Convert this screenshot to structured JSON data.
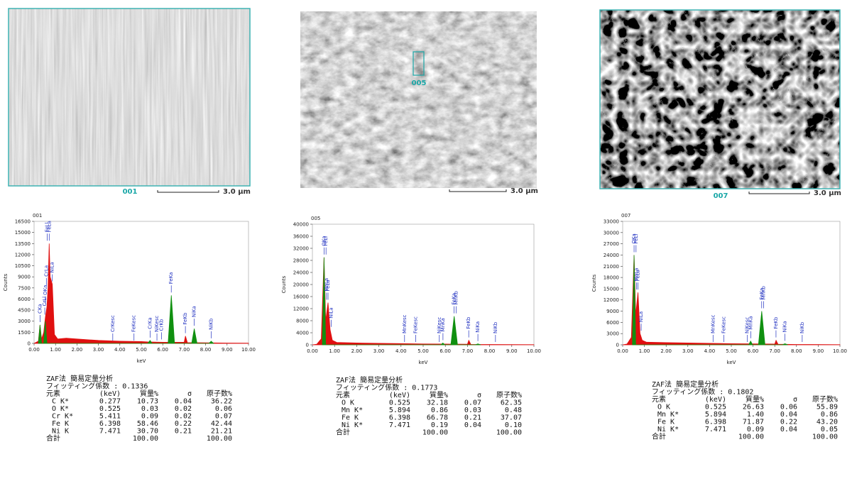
{
  "chart_data": [
    {
      "type": "line",
      "title": "001",
      "ylabel": "Counts",
      "xlabel": "keV",
      "grid": false,
      "xlim": [
        0,
        10
      ],
      "ylim": [
        0,
        16500
      ],
      "xticks": [
        {
          "value": 0,
          "label": "0.00"
        },
        {
          "value": 1,
          "label": "1.00"
        },
        {
          "value": 2,
          "label": "2.00"
        },
        {
          "value": 3,
          "label": "3.00"
        },
        {
          "value": 4,
          "label": "4.00"
        },
        {
          "value": 5,
          "label": "5.00"
        },
        {
          "value": 6,
          "label": "6.00"
        },
        {
          "value": 7,
          "label": "7.00"
        },
        {
          "value": 8,
          "label": "8.00"
        },
        {
          "value": 9,
          "label": "9.00"
        },
        {
          "value": 10,
          "label": "10.00"
        }
      ],
      "yticks": [
        0,
        1500,
        3000,
        4500,
        6000,
        7500,
        9000,
        10500,
        12000,
        13500,
        15000,
        16500
      ],
      "series": [
        {
          "color": "#e01010",
          "x": [
            0,
            0.2,
            0.277,
            0.35,
            0.45,
            0.525,
            0.6,
            0.65,
            0.705,
            0.75,
            0.85,
            0.95,
            1.1,
            1.5,
            2,
            3,
            4,
            5,
            5.3,
            6,
            7,
            7.06,
            7.15,
            8,
            9,
            10
          ],
          "values": [
            0,
            300,
            2500,
            600,
            1500,
            3500,
            5000,
            7500,
            13500,
            9000,
            8000,
            1200,
            600,
            700,
            600,
            400,
            300,
            250,
            200,
            150,
            150,
            1000,
            100,
            80,
            50,
            30
          ]
        },
        {
          "color": "#109010",
          "x": [
            0.2,
            0.277,
            0.35,
            0.45,
            0.525,
            0.6,
            5.3,
            5.41,
            5.5,
            6.25,
            6.4,
            6.55,
            7.35,
            7.47,
            7.6,
            8.15,
            8.26,
            8.37
          ],
          "values": [
            0,
            2500,
            0,
            0,
            3000,
            0,
            0,
            400,
            0,
            0,
            6500,
            0,
            0,
            2000,
            0,
            0,
            300,
            0
          ]
        }
      ],
      "annotations": [
        {
          "text": "CKa",
          "x": 0.277
        },
        {
          "text": "OKa",
          "x": 0.525
        },
        {
          "text": "CrLl",
          "x": 0.5
        },
        {
          "text": "CrLa",
          "x": 0.573
        },
        {
          "text": "FeLl",
          "x": 0.615
        },
        {
          "text": "FeLa",
          "x": 0.705
        },
        {
          "text": "NiLa",
          "x": 0.851
        },
        {
          "text": "CrKesc",
          "x": 3.67
        },
        {
          "text": "FeKesc",
          "x": 4.66
        },
        {
          "text": "CrKa",
          "x": 5.411
        },
        {
          "text": "NiKesc",
          "x": 5.73
        },
        {
          "text": "CrKb",
          "x": 5.946
        },
        {
          "text": "FeKa",
          "x": 6.398
        },
        {
          "text": "FeKb",
          "x": 7.057
        },
        {
          "text": "NiKa",
          "x": 7.471
        },
        {
          "text": "NiKb",
          "x": 8.264
        }
      ]
    },
    {
      "type": "line",
      "title": "005",
      "ylabel": "Counts",
      "xlabel": "keV",
      "grid": false,
      "xlim": [
        0,
        10
      ],
      "ylim": [
        0,
        40000
      ],
      "xticks": [
        {
          "value": 0,
          "label": "0.00"
        },
        {
          "value": 1,
          "label": "1.00"
        },
        {
          "value": 2,
          "label": "2.00"
        },
        {
          "value": 3,
          "label": "3.00"
        },
        {
          "value": 4,
          "label": "4.00"
        },
        {
          "value": 5,
          "label": "5.00"
        },
        {
          "value": 6,
          "label": "6.00"
        },
        {
          "value": 7,
          "label": "7.00"
        },
        {
          "value": 8,
          "label": "8.00"
        },
        {
          "value": 9,
          "label": "9.00"
        },
        {
          "value": 10,
          "label": "10.00"
        }
      ],
      "yticks": [
        0,
        4000,
        8000,
        12000,
        16000,
        20000,
        24000,
        28000,
        32000,
        36000,
        40000
      ],
      "series": [
        {
          "color": "#e01010",
          "x": [
            0,
            0.2,
            0.4,
            0.525,
            0.6,
            0.705,
            0.8,
            0.9,
            1.1,
            2,
            3,
            4,
            5,
            6,
            7,
            7.06,
            7.15,
            8,
            10
          ],
          "values": [
            0,
            200,
            2000,
            29000,
            8000,
            14000,
            5000,
            1500,
            800,
            600,
            500,
            400,
            300,
            250,
            200,
            1500,
            150,
            100,
            50
          ]
        },
        {
          "color": "#109010",
          "x": [
            0.45,
            0.525,
            0.6,
            5.8,
            5.89,
            5.98,
            6.25,
            6.4,
            6.55,
            7.35,
            7.47,
            7.6
          ],
          "values": [
            0,
            29000,
            0,
            0,
            600,
            0,
            0,
            9500,
            0,
            0,
            300,
            0
          ]
        }
      ],
      "annotations": [
        {
          "text": "OKa",
          "x": 0.525
        },
        {
          "text": "MnLa",
          "x": 0.637
        },
        {
          "text": "FeLl",
          "x": 0.615
        },
        {
          "text": "FeLa",
          "x": 0.705
        },
        {
          "text": "NiLa",
          "x": 0.851
        },
        {
          "text": "MnKesc",
          "x": 4.16
        },
        {
          "text": "FeKesc",
          "x": 4.66
        },
        {
          "text": "NiKesc",
          "x": 5.73
        },
        {
          "text": "MnKa",
          "x": 5.894
        },
        {
          "text": "FeKa",
          "x": 6.398
        },
        {
          "text": "MnKb",
          "x": 6.49
        },
        {
          "text": "FeKb",
          "x": 7.057
        },
        {
          "text": "NiKa",
          "x": 7.471
        },
        {
          "text": "NiKb",
          "x": 8.264
        }
      ]
    },
    {
      "type": "line",
      "title": "007",
      "ylabel": "Counts",
      "xlabel": "keV",
      "grid": false,
      "xlim": [
        0,
        10
      ],
      "ylim": [
        0,
        33000
      ],
      "xticks": [
        {
          "value": 0,
          "label": "0.00"
        },
        {
          "value": 1,
          "label": "1.00"
        },
        {
          "value": 2,
          "label": "2.00"
        },
        {
          "value": 3,
          "label": "3.00"
        },
        {
          "value": 4,
          "label": "4.00"
        },
        {
          "value": 5,
          "label": "5.00"
        },
        {
          "value": 6,
          "label": "6.00"
        },
        {
          "value": 7,
          "label": "7.00"
        },
        {
          "value": 8,
          "label": "8.00"
        },
        {
          "value": 9,
          "label": "9.00"
        },
        {
          "value": 10,
          "label": "10.00"
        }
      ],
      "yticks": [
        0,
        3000,
        6000,
        9000,
        12000,
        15000,
        18000,
        21000,
        24000,
        27000,
        30000,
        33000
      ],
      "series": [
        {
          "color": "#e01010",
          "x": [
            0,
            0.2,
            0.4,
            0.525,
            0.6,
            0.705,
            0.8,
            0.9,
            1.1,
            2,
            3,
            4,
            5,
            6,
            7,
            7.06,
            7.15,
            8,
            10
          ],
          "values": [
            0,
            200,
            2000,
            24000,
            8000,
            14000,
            3000,
            1200,
            700,
            600,
            500,
            400,
            300,
            250,
            200,
            1200,
            150,
            100,
            50
          ]
        },
        {
          "color": "#109010",
          "x": [
            0.45,
            0.525,
            0.6,
            5.8,
            5.89,
            5.98,
            6.25,
            6.4,
            6.55,
            7.35,
            7.47,
            7.6
          ],
          "values": [
            0,
            24000,
            0,
            0,
            1000,
            0,
            0,
            9000,
            0,
            0,
            300,
            0
          ]
        }
      ],
      "annotations": [
        {
          "text": "OKa",
          "x": 0.525
        },
        {
          "text": "MnLa",
          "x": 0.637
        },
        {
          "text": "FeLl",
          "x": 0.615
        },
        {
          "text": "FeLa",
          "x": 0.705
        },
        {
          "text": "NiLa",
          "x": 0.851
        },
        {
          "text": "MnKesc",
          "x": 4.16
        },
        {
          "text": "FeKesc",
          "x": 4.66
        },
        {
          "text": "NiKesc",
          "x": 5.73
        },
        {
          "text": "MnKa",
          "x": 5.894
        },
        {
          "text": "FeKa",
          "x": 6.398
        },
        {
          "text": "MnKb",
          "x": 6.49
        },
        {
          "text": "FeKb",
          "x": 7.057
        },
        {
          "text": "NiKa",
          "x": 7.471
        },
        {
          "text": "NiKb",
          "x": 8.264
        }
      ]
    }
  ],
  "images": [
    {
      "label": "001",
      "scale": "3.0 µm"
    },
    {
      "label": "005",
      "scale": "3.0 µm"
    },
    {
      "label": "007",
      "scale": "3.0 µm"
    }
  ],
  "tables": [
    {
      "title": "ZAF法 簡易定量分析",
      "fitting": "フィッティング係数 : 0.1336",
      "header": [
        "元素",
        "(keV)",
        "質量%",
        "σ",
        "原子数%"
      ],
      "rows": [
        [
          "C K*",
          "0.277",
          "10.73",
          "0.04",
          "36.22"
        ],
        [
          "O K*",
          "0.525",
          "0.03",
          "0.02",
          "0.06"
        ],
        [
          "Cr K*",
          "5.411",
          "0.09",
          "0.02",
          "0.07"
        ],
        [
          "Fe K",
          "6.398",
          "58.46",
          "0.22",
          "42.44"
        ],
        [
          "Ni K",
          "7.471",
          "30.70",
          "0.21",
          "21.21"
        ]
      ],
      "total": [
        "合計",
        "100.00",
        "100.00"
      ]
    },
    {
      "title": "ZAF法 簡易定量分析",
      "fitting": "フィッティング係数 : 0.1773",
      "header": [
        "元素",
        "(keV)",
        "質量%",
        "σ",
        "原子数%"
      ],
      "rows": [
        [
          "O K",
          "0.525",
          "32.18",
          "0.07",
          "62.35"
        ],
        [
          "Mn K*",
          "5.894",
          "0.86",
          "0.03",
          "0.48"
        ],
        [
          "Fe K",
          "6.398",
          "66.78",
          "0.21",
          "37.07"
        ],
        [
          "Ni K*",
          "7.471",
          "0.19",
          "0.04",
          "0.10"
        ]
      ],
      "total": [
        "合計",
        "100.00",
        "100.00"
      ]
    },
    {
      "title": "ZAF法 簡易定量分析",
      "fitting": "フィッティング係数 : 0.1802",
      "header": [
        "元素",
        "(keV)",
        "質量%",
        "σ",
        "原子数%"
      ],
      "rows": [
        [
          "O K",
          "0.525",
          "26.63",
          "0.06",
          "55.89"
        ],
        [
          "Mn K*",
          "5.894",
          "1.40",
          "0.04",
          "0.86"
        ],
        [
          "Fe K",
          "6.398",
          "71.87",
          "0.22",
          "43.20"
        ],
        [
          "Ni K*",
          "7.471",
          "0.09",
          "0.04",
          "0.05"
        ]
      ],
      "total": [
        "合計",
        "100.00",
        "100.00"
      ]
    }
  ]
}
